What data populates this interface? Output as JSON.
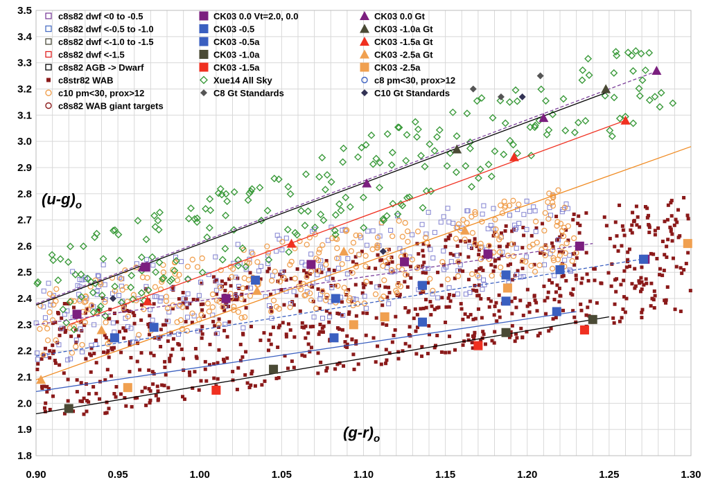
{
  "chart_data": {
    "type": "scatter",
    "x_axis": {
      "range": [
        0.9,
        1.3
      ],
      "ticks": [
        "0.90",
        "0.95",
        "1.00",
        "1.05",
        "1.10",
        "1.15",
        "1.20",
        "1.25",
        "1.30"
      ]
    },
    "y_axis": {
      "range": [
        1.8,
        3.5
      ],
      "ticks": [
        "1.8",
        "1.9",
        "2.0",
        "2.1",
        "2.2",
        "2.3",
        "2.4",
        "2.5",
        "2.6",
        "2.7",
        "2.8",
        "2.9",
        "3.0",
        "3.1",
        "3.2",
        "3.3",
        "3.4",
        "3.5"
      ]
    },
    "xlabel": {
      "main": "(g-r)",
      "sub": "o"
    },
    "ylabel": {
      "main": "(u-g)",
      "sub": "o"
    },
    "grid": true,
    "legend": [
      {
        "label": "c8s82 dwf <0 to -0.5",
        "marker": "square-open",
        "color": "#7b3f9a"
      },
      {
        "label": "c8s82 dwf <-0.5 to -1.0",
        "marker": "square-open",
        "color": "#4a6fc4"
      },
      {
        "label": "c8s82 dwf <-1.0 to -1.5",
        "marker": "square-open",
        "color": "#4a4a3a"
      },
      {
        "label": "c8s82 dwf <-1.5",
        "marker": "square-open",
        "color": "#e02020"
      },
      {
        "label": "c8s82 AGB -> Dwarf",
        "marker": "square-open",
        "color": "#000000"
      },
      {
        "label": "c8str82 WAB",
        "marker": "dot",
        "color": "#8b1a1a"
      },
      {
        "label": "c10 pm<30, prox>12",
        "marker": "circle-open",
        "color": "#f0a050"
      },
      {
        "label": "c8s82 WAB giant targets",
        "marker": "circle-open",
        "color": "#8b1a1a"
      },
      {
        "label": "CK03 0.0 Vt=2.0, 0.0",
        "marker": "square",
        "color": "#7b1f7f"
      },
      {
        "label": "CK03 -0.5",
        "marker": "square",
        "color": "#3a5fc0"
      },
      {
        "label": "CK03 -0.5a",
        "marker": "square",
        "color": "#3a5fc0"
      },
      {
        "label": "CK03 -1.0a",
        "marker": "square",
        "color": "#4a4a35"
      },
      {
        "label": "CK03 -1.5a",
        "marker": "square",
        "color": "#f03020"
      },
      {
        "label": "Xue14 All Sky",
        "marker": "diamond-open",
        "color": "#3a9a3a"
      },
      {
        "label": "C8 Gt Standards",
        "marker": "diamond",
        "color": "#555555"
      },
      {
        "label": "CK03  0.0 Gt",
        "marker": "triangle",
        "color": "#7b1f7f"
      },
      {
        "label": "CK03 -1.0a Gt",
        "marker": "triangle",
        "color": "#4a4a35"
      },
      {
        "label": "CK03 -1.5a Gt",
        "marker": "triangle",
        "color": "#f03020"
      },
      {
        "label": "CK03 -2.5a Gt",
        "marker": "triangle",
        "color": "#f0a050"
      },
      {
        "label": "CK03 -2.5a",
        "marker": "square",
        "color": "#f0a050"
      },
      {
        "label": "c8 pm<30, prox>12",
        "marker": "circle-open",
        "color": "#3a5fc0"
      },
      {
        "label": "C10 Gt Standards",
        "marker": "diamond",
        "color": "#333355"
      }
    ],
    "series": [
      {
        "name": "CK03 0.0 Vt=2.0, 0.0",
        "marker": "square",
        "color": "#7b1f7f",
        "x": [
          0.925,
          0.967,
          1.016,
          1.068,
          1.125,
          1.176,
          1.232,
          1.272
        ],
        "y": [
          2.34,
          2.52,
          2.4,
          2.53,
          2.54,
          2.57,
          2.6,
          2.55
        ]
      },
      {
        "name": "CK03 -0.5",
        "marker": "square",
        "color": "#3a5fc0",
        "x": [
          0.948,
          0.972,
          1.082,
          1.136,
          1.187,
          1.218
        ],
        "y": [
          2.25,
          2.29,
          2.25,
          2.31,
          2.39,
          2.35
        ]
      },
      {
        "name": "CK03 -0.5a",
        "marker": "square",
        "color": "#3a5fc0",
        "x": [
          1.034,
          1.083,
          1.136,
          1.187,
          1.22,
          1.271
        ],
        "y": [
          2.47,
          2.4,
          2.45,
          2.49,
          2.51,
          2.55
        ]
      },
      {
        "name": "CK03 -1.0a",
        "marker": "square",
        "color": "#4a4a35",
        "x": [
          0.92,
          1.045,
          1.187,
          1.24
        ],
        "y": [
          1.98,
          2.13,
          2.27,
          2.32
        ]
      },
      {
        "name": "CK03 -1.5a",
        "marker": "square",
        "color": "#f03020",
        "x": [
          1.01,
          1.17,
          1.235
        ],
        "y": [
          2.05,
          2.22,
          2.28
        ]
      },
      {
        "name": "CK03 -2.5a",
        "marker": "square",
        "color": "#f0a050",
        "x": [
          0.956,
          1.094,
          1.113,
          1.188,
          1.298
        ],
        "y": [
          2.06,
          2.3,
          2.33,
          2.44,
          2.61
        ]
      },
      {
        "name": "CK03  0.0 Gt",
        "marker": "triangle",
        "color": "#7b1f7f",
        "x": [
          0.965,
          1.102,
          1.21,
          1.279
        ],
        "y": [
          2.52,
          2.84,
          3.09,
          3.27
        ]
      },
      {
        "name": "CK03 -1.0a Gt",
        "marker": "triangle",
        "color": "#4a4a35",
        "x": [
          1.157,
          1.248
        ],
        "y": [
          2.97,
          3.2
        ]
      },
      {
        "name": "CK03 -1.5a Gt",
        "marker": "triangle",
        "color": "#f03020",
        "x": [
          0.968,
          1.056,
          1.192,
          1.26
        ],
        "y": [
          2.39,
          2.61,
          2.94,
          3.08
        ]
      },
      {
        "name": "CK03 -2.5a Gt",
        "marker": "triangle",
        "color": "#f0a050",
        "x": [
          0.903,
          0.94,
          1.035,
          1.088,
          1.162
        ],
        "y": [
          2.09,
          2.28,
          2.43,
          2.58,
          2.66
        ]
      },
      {
        "name": "C8 Gt Standards",
        "marker": "diamond",
        "color": "#555555",
        "x": [
          1.167,
          1.184,
          1.208
        ],
        "y": [
          3.2,
          3.17,
          3.25
        ]
      },
      {
        "name": "C10 Gt Standards",
        "marker": "diamond",
        "color": "#333355",
        "x": [
          0.947,
          1.112,
          1.197
        ],
        "y": [
          2.4,
          2.58,
          3.17
        ]
      }
    ],
    "fit_lines": [
      {
        "color": "#000000",
        "dash": false,
        "x": [
          0.9,
          1.25
        ],
        "y": [
          2.375,
          3.19
        ]
      },
      {
        "color": "#7b3f9a",
        "dash": true,
        "x": [
          0.9,
          1.28
        ],
        "y": [
          2.38,
          3.27
        ]
      },
      {
        "color": "#f03020",
        "dash": false,
        "x": [
          0.92,
          1.26
        ],
        "y": [
          2.3,
          3.08
        ]
      },
      {
        "color": "#f08a20",
        "dash": false,
        "x": [
          0.9,
          1.3
        ],
        "y": [
          2.09,
          2.98
        ]
      },
      {
        "color": "#7b3f9a",
        "dash": true,
        "x": [
          0.9,
          1.24
        ],
        "y": [
          2.3,
          2.61
        ]
      },
      {
        "color": "#3a5fc0",
        "dash": true,
        "x": [
          0.9,
          1.27
        ],
        "y": [
          2.18,
          2.55
        ]
      },
      {
        "color": "#3a5fc0",
        "dash": false,
        "x": [
          0.9,
          1.23
        ],
        "y": [
          2.045,
          2.35
        ]
      },
      {
        "color": "#000000",
        "dash": false,
        "x": [
          0.9,
          1.25
        ],
        "y": [
          1.96,
          2.33
        ]
      }
    ]
  },
  "colors": {
    "wab": "#8b1a1a",
    "xue": "#3a9a3a",
    "c10": "#f0a050",
    "c8s82": "#8080d0",
    "grid": "#d8d8d8"
  }
}
